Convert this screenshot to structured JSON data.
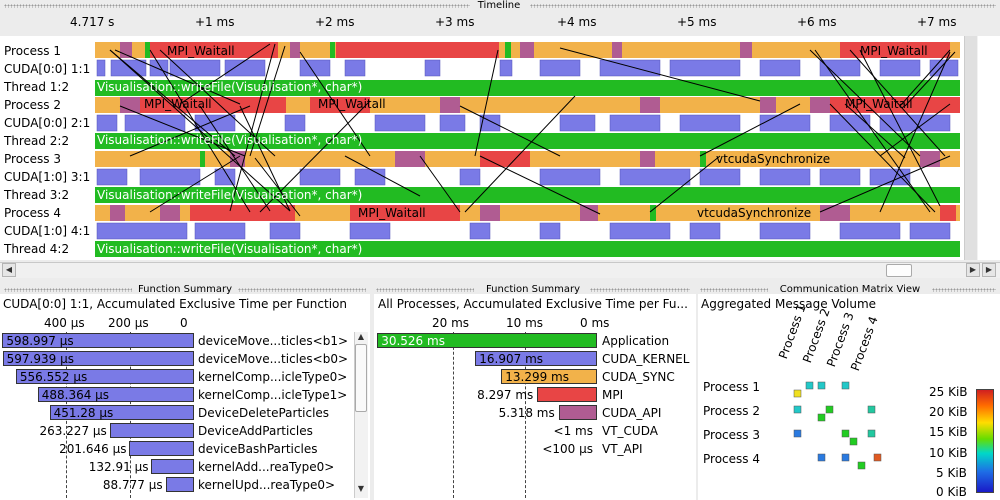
{
  "timeline": {
    "title": "Timeline",
    "ticks": [
      "4.717 s",
      "+1 ms",
      "+2 ms",
      "+3 ms",
      "+4 ms",
      "+5 ms",
      "+6 ms",
      "+7 ms"
    ],
    "rows": [
      "Process 1",
      "CUDA[0:0] 1:1",
      "Thread 1:2",
      "Process 2",
      "CUDA[0:0] 2:1",
      "Thread 2:2",
      "Process 3",
      "CUDA[1:0] 3:1",
      "Thread 3:2",
      "Process 4",
      "CUDA[1:0] 4:1",
      "Thread 4:2"
    ],
    "labels": {
      "p1_waitall_a": "MPI_Waitall",
      "p1_waitall_b": "MPI_Waitall",
      "t12": "Visualisation::writeFile(Visualisation*, char*)",
      "p2_waitall_a": "MPI_Waitall",
      "p2_waitall_b": "MPI_Waitall",
      "p2_waitall_c": "MPI_Waitall",
      "t22": "Visualisation::writeFile(Visualisation*, char*)",
      "p3_sync": "vtcudaSynchronize",
      "t32": "Visualisation::writeFile(Visualisation*, char*)",
      "p4_waitall": "MPI_Waitall",
      "p4_sync": "vtcudaSynchronize",
      "t42": "Visualisation::writeFile(Visualisation*, char*)"
    }
  },
  "func_summary_left": {
    "title": "Function Summary",
    "subtitle": "CUDA[0:0] 1:1, Accumulated Exclusive Time per Function",
    "axis": [
      "400 µs",
      "200 µs",
      "0 µs"
    ],
    "rows": [
      {
        "value": "598.997 µs",
        "name": "deviceMove...ticles<b1>"
      },
      {
        "value": "597.939 µs",
        "name": "deviceMove...ticles<b0>"
      },
      {
        "value": "556.552 µs",
        "name": "kernelComp...icleType0>"
      },
      {
        "value": "488.364 µs",
        "name": "kernelComp...icleType1>"
      },
      {
        "value": "451.28 µs",
        "name": "DeviceDeleteParticles"
      },
      {
        "value": "263.227 µs",
        "name": "DeviceAddParticles"
      },
      {
        "value": "201.646 µs",
        "name": "deviceBashParticles"
      },
      {
        "value": "132.91 µs",
        "name": "kernelAdd...reaType0>"
      },
      {
        "value": "88.777 µs",
        "name": "kernelUpd...reaType0>"
      }
    ],
    "micro_values": [
      598.997,
      597.939,
      556.552,
      488.364,
      451.28,
      263.227,
      201.646,
      132.91,
      88.777
    ]
  },
  "func_summary_mid": {
    "title": "Function Summary",
    "subtitle": "All Processes, Accumulated Exclusive Time per Fu...",
    "axis": [
      "20 ms",
      "10 ms",
      "0 ms"
    ],
    "rows": [
      {
        "value": "30.526 ms",
        "name": "Application",
        "color": "#22bb22"
      },
      {
        "value": "16.907 ms",
        "name": "CUDA_KERNEL",
        "color": "#7a7ae6"
      },
      {
        "value": "13.299 ms",
        "name": "CUDA_SYNC",
        "color": "#f2b24a"
      },
      {
        "value": "8.297 ms",
        "name": "MPI",
        "color": "#e84545"
      },
      {
        "value": "5.318 ms",
        "name": "CUDA_API",
        "color": "#b05c92"
      },
      {
        "value": "<1 ms",
        "name": "VT_CUDA",
        "color": "#cccccc"
      },
      {
        "value": "<100 µs",
        "name": "VT_API",
        "color": "#cccccc"
      }
    ],
    "ms_values": [
      30.526,
      16.907,
      13.299,
      8.297,
      5.318,
      0,
      0
    ]
  },
  "comm_matrix": {
    "title": "Communication Matrix View",
    "subtitle": "Aggregated Message Volume",
    "cols": [
      "Process 1",
      "Process 2",
      "Process 3",
      "Process 4"
    ],
    "rows": [
      "Process 1",
      "Process 2",
      "Process 3",
      "Process 4"
    ],
    "scale": [
      "25 KiB",
      "20 KiB",
      "15 KiB",
      "10 KiB",
      "5 KiB",
      "0 KiB"
    ]
  },
  "colors": {
    "mpi": "#e84545",
    "cuda_sync": "#f2b24a",
    "cuda_kernel": "#7a7ae6",
    "application": "#22bb22",
    "cuda_api": "#b05c92"
  }
}
